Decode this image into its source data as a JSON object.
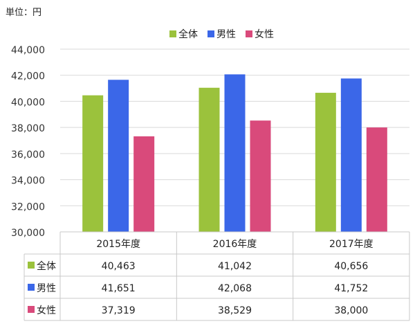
{
  "unit_label": "単位：円",
  "colors": {
    "total": "#9bc23c",
    "male": "#3b67e8",
    "female": "#d94a7b"
  },
  "chart_data": {
    "type": "bar",
    "title": "",
    "xlabel": "",
    "ylabel": "",
    "categories": [
      "2015年度",
      "2016年度",
      "2017年度"
    ],
    "series": [
      {
        "name": "全体",
        "values": [
          40463,
          41042,
          40656
        ]
      },
      {
        "name": "男性",
        "values": [
          41651,
          42068,
          41752
        ]
      },
      {
        "name": "女性",
        "values": [
          37319,
          38529,
          38000
        ]
      }
    ],
    "display_values": [
      [
        "40,463",
        "41,042",
        "40,656"
      ],
      [
        "41,651",
        "42,068",
        "41,752"
      ],
      [
        "37,319",
        "38,529",
        "38,000"
      ]
    ],
    "ylim": [
      30000,
      44000
    ],
    "yticks": [
      30000,
      32000,
      34000,
      36000,
      38000,
      40000,
      42000,
      44000
    ],
    "ytick_labels": [
      "30,000",
      "32,000",
      "34,000",
      "36,000",
      "38,000",
      "40,000",
      "42,000",
      "44,000"
    ],
    "grid": true,
    "legend_position": "top-center",
    "data_table": true
  }
}
